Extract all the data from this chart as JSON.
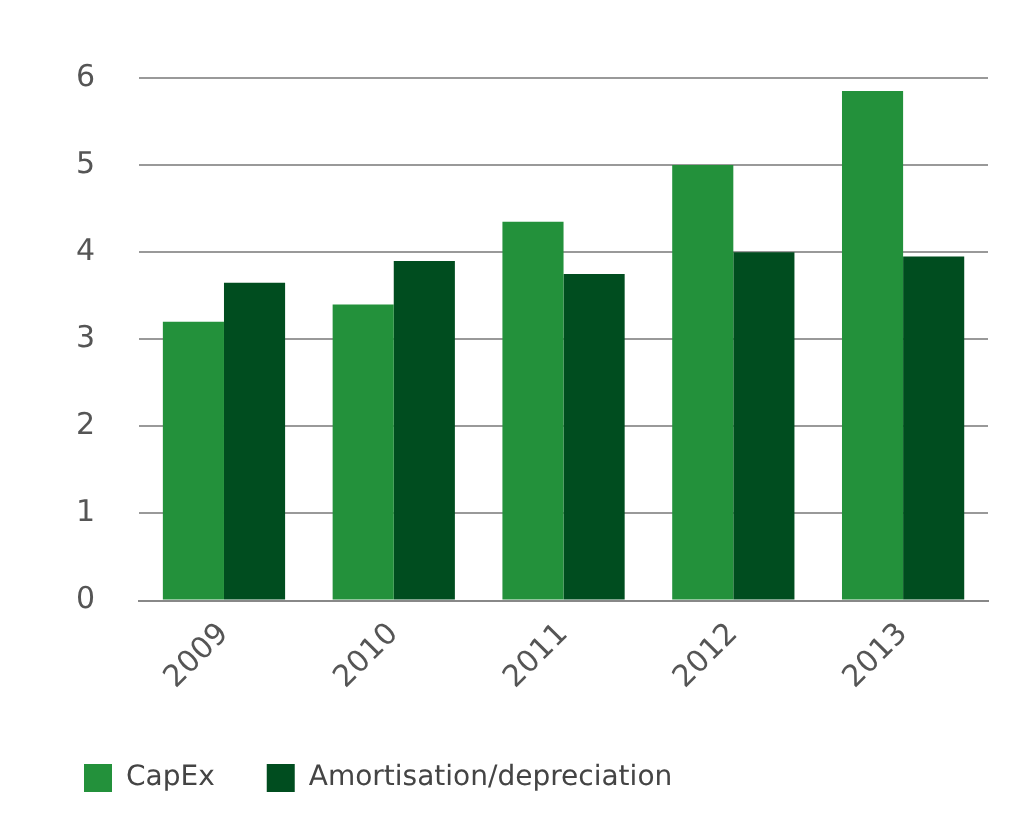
{
  "chart_data": {
    "type": "bar",
    "categories": [
      "2009",
      "2010",
      "2011",
      "2012",
      "2013"
    ],
    "series": [
      {
        "name": "CapEx",
        "color": "#23913b",
        "values": [
          3.2,
          3.4,
          4.35,
          5.0,
          5.85
        ]
      },
      {
        "name": "Amortisation/depreciation",
        "color": "#004d1f",
        "values": [
          3.65,
          3.9,
          3.75,
          4.0,
          3.95
        ]
      }
    ],
    "ylim": [
      0,
      6
    ],
    "yticks": [
      0,
      1,
      2,
      3,
      4,
      5,
      6
    ],
    "grid": "y",
    "legend": "bottom left"
  }
}
